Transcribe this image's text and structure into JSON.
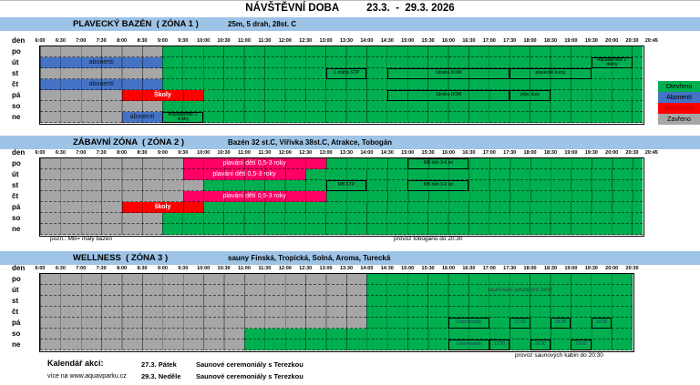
{
  "title": {
    "main": "NÁVŠTĚVNÍ DOBA",
    "range": "23.3.  -  29.3. 2026"
  },
  "day_header": "den",
  "colors": {
    "open": "#00b050",
    "abonenti": "#4472c4",
    "reserved": "#ff0000",
    "closed": "#a6a6a6",
    "pink": "#ff0066",
    "header_bar": "#9dc3e6"
  },
  "legend": [
    {
      "type": "open",
      "label": "Otevřeno"
    },
    {
      "type": "abonenti",
      "label": "Abonenti"
    },
    {
      "type": "reserved",
      "label": "Rezervace",
      "text_color": "#b00000"
    },
    {
      "type": "closed",
      "label": "Zavřeno"
    }
  ],
  "zones": [
    {
      "name": "PLAVECKÝ BAZÉN  ( ZÓNA 1 )",
      "subtitle": "25m, 5 drah, 28st. C",
      "axis_end": "20:45",
      "rows": [
        {
          "day": "po",
          "segments": [
            {
              "from": "6:00",
              "to": "9:00",
              "type": "closed"
            },
            {
              "from": "9:00",
              "to": "20:45",
              "type": "open"
            }
          ]
        },
        {
          "day": "út",
          "segments": [
            {
              "from": "6:00",
              "to": "9:00",
              "type": "abonenti",
              "label": "abonenti"
            },
            {
              "from": "9:00",
              "to": "20:45",
              "type": "open"
            }
          ],
          "boxes": [
            {
              "from": "19:30",
              "to": "20:30",
              "label": "Aquaaerobik 2 dráhy"
            }
          ]
        },
        {
          "day": "st",
          "segments": [
            {
              "from": "6:00",
              "to": "9:00",
              "type": "closed"
            },
            {
              "from": "9:00",
              "to": "20:45",
              "type": "open"
            }
          ],
          "boxes": [
            {
              "from": "13:00",
              "to": "14:00",
              "label": "1 dráha STP"
            },
            {
              "from": "14:30",
              "to": "17:30",
              "label": "1dráha DOM"
            },
            {
              "from": "17:30",
              "to": "19:30",
              "label": "plavecké kurzy"
            }
          ]
        },
        {
          "day": "čt",
          "segments": [
            {
              "from": "6:00",
              "to": "9:00",
              "type": "abonenti",
              "label": "abonenti"
            },
            {
              "from": "9:00",
              "to": "20:45",
              "type": "open"
            }
          ]
        },
        {
          "day": "pá",
          "segments": [
            {
              "from": "6:00",
              "to": "8:00",
              "type": "closed"
            },
            {
              "from": "8:00",
              "to": "10:00",
              "type": "reserved",
              "label": "Školy"
            },
            {
              "from": "10:00",
              "to": "20:45",
              "type": "open"
            }
          ],
          "boxes": [
            {
              "from": "14:30",
              "to": "17:30",
              "label": "1dráha DOM"
            },
            {
              "from": "17:30",
              "to": "18:30",
              "label": "pláv. kurz"
            }
          ]
        },
        {
          "day": "so",
          "segments": [
            {
              "from": "6:00",
              "to": "9:00",
              "type": "closed"
            },
            {
              "from": "9:00",
              "to": "20:45",
              "type": "open"
            }
          ]
        },
        {
          "day": "ne",
          "segments": [
            {
              "from": "6:00",
              "to": "8:00",
              "type": "closed"
            },
            {
              "from": "8:00",
              "to": "9:00",
              "type": "abonenti",
              "label": "abonenti"
            },
            {
              "from": "9:00",
              "to": "20:45",
              "type": "open"
            }
          ],
          "boxes": [
            {
              "from": "9:00",
              "to": "10:00",
              "label": "Aquaaerobic 2 dráhy"
            }
          ]
        }
      ]
    },
    {
      "name": "ZÁBAVNÍ ZÓNA  ( ZÓNA 2 )",
      "subtitle": "Bazén 32 st.C, Vířivka 38st.C, Atrakce, Tobogán",
      "axis_end": "20:45",
      "note_left": "pozn.: MB= malý bazén",
      "note_right": "provoz tobogánu do 20:30",
      "rows": [
        {
          "day": "po",
          "segments": [
            {
              "from": "6:00",
              "to": "9:30",
              "type": "closed"
            },
            {
              "from": "9:30",
              "to": "13:00",
              "type": "pink",
              "label": "plavání dětí 0,5-3 roky"
            },
            {
              "from": "13:00",
              "to": "20:45",
              "type": "open"
            }
          ],
          "boxes": [
            {
              "from": "15:00",
              "to": "16:30",
              "label": "MB děti 3-6 let"
            }
          ]
        },
        {
          "day": "út",
          "segments": [
            {
              "from": "6:00",
              "to": "9:30",
              "type": "closed"
            },
            {
              "from": "9:30",
              "to": "12:30",
              "type": "pink",
              "label": "plavání dětí 0,5-3 roky"
            },
            {
              "from": "12:30",
              "to": "20:45",
              "type": "open"
            }
          ]
        },
        {
          "day": "st",
          "segments": [
            {
              "from": "6:00",
              "to": "10:00",
              "type": "closed"
            },
            {
              "from": "10:00",
              "to": "20:45",
              "type": "open"
            }
          ],
          "boxes": [
            {
              "from": "13:00",
              "to": "14:00",
              "label": "MB STP"
            },
            {
              "from": "15:00",
              "to": "16:30",
              "label": "MB děti 3-6 let"
            }
          ]
        },
        {
          "day": "čt",
          "segments": [
            {
              "from": "6:00",
              "to": "9:30",
              "type": "closed"
            },
            {
              "from": "9:30",
              "to": "13:00",
              "type": "pink",
              "label": "plavání dětí 0,5-3 roky"
            },
            {
              "from": "13:00",
              "to": "20:45",
              "type": "open"
            }
          ]
        },
        {
          "day": "pá",
          "segments": [
            {
              "from": "6:00",
              "to": "8:00",
              "type": "closed"
            },
            {
              "from": "8:00",
              "to": "10:00",
              "type": "reserved",
              "label": "školy"
            },
            {
              "from": "10:00",
              "to": "20:45",
              "type": "open"
            }
          ]
        },
        {
          "day": "so",
          "segments": [
            {
              "from": "6:00",
              "to": "9:00",
              "type": "closed"
            },
            {
              "from": "9:00",
              "to": "20:45",
              "type": "open"
            }
          ]
        },
        {
          "day": "ne",
          "segments": [
            {
              "from": "6:00",
              "to": "9:00",
              "type": "closed"
            },
            {
              "from": "9:00",
              "to": "20:45",
              "type": "open"
            }
          ]
        }
      ]
    },
    {
      "name": "WELLNESS  ( ZÓNA 3 )",
      "subtitle": "sauny Finská, Tropická, Solná, Aroma, Turecká",
      "axis_end": "20:30",
      "note_right": "provoz saunových kabin do 20:30",
      "rows": [
        {
          "day": "po",
          "segments": [
            {
              "from": "6:00",
              "to": "14:00",
              "type": "closed"
            },
            {
              "from": "14:00",
              "to": "20:30",
              "type": "open"
            }
          ]
        },
        {
          "day": "út",
          "segments": [
            {
              "from": "6:00",
              "to": "14:00",
              "type": "closed"
            },
            {
              "from": "14:00",
              "to": "20:30",
              "type": "open"
            }
          ],
          "boxes": [
            {
              "from": "15:30",
              "to": "20:00",
              "label": "saunování pouze pro ženy",
              "no_border": true
            }
          ]
        },
        {
          "day": "st",
          "segments": [
            {
              "from": "6:00",
              "to": "14:00",
              "type": "closed"
            },
            {
              "from": "14:00",
              "to": "20:30",
              "type": "open"
            }
          ]
        },
        {
          "day": "čt",
          "segments": [
            {
              "from": "6:00",
              "to": "14:00",
              "type": "closed"
            },
            {
              "from": "14:00",
              "to": "20:30",
              "type": "open"
            }
          ]
        },
        {
          "day": "pá",
          "segments": [
            {
              "from": "6:00",
              "to": "14:00",
              "type": "closed"
            },
            {
              "from": "14:00",
              "to": "20:30",
              "type": "open"
            }
          ],
          "boxes": [
            {
              "from": "16:00",
              "to": "17:00",
              "label": "Ceremoniály",
              "text_color": "#1f3864"
            },
            {
              "from": "17:30",
              "to": "18:00",
              "label": "17:30",
              "text_color": "#1f3864"
            },
            {
              "from": "18:30",
              "to": "19:00",
              "label": "18:30",
              "text_color": "#1f3864"
            },
            {
              "from": "19:30",
              "to": "20:00",
              "label": "19:30",
              "text_color": "#1f3864"
            }
          ]
        },
        {
          "day": "so",
          "segments": [
            {
              "from": "6:00",
              "to": "11:00",
              "type": "closed"
            },
            {
              "from": "11:00",
              "to": "20:30",
              "type": "open"
            }
          ]
        },
        {
          "day": "ne",
          "segments": [
            {
              "from": "6:00",
              "to": "11:00",
              "type": "closed"
            },
            {
              "from": "11:00",
              "to": "20:30",
              "type": "open"
            }
          ],
          "boxes": [
            {
              "from": "16:00",
              "to": "17:00",
              "label": "Ceremoniály",
              "text_color": "#1f3864"
            },
            {
              "from": "17:00",
              "to": "17:30",
              "label": "17:00",
              "text_color": "#1f3864"
            },
            {
              "from": "18:00",
              "to": "18:30",
              "label": "18:00",
              "text_color": "#1f3864"
            },
            {
              "from": "19:00",
              "to": "19:30",
              "label": "19:00",
              "text_color": "#1f3864"
            }
          ]
        }
      ]
    }
  ],
  "calendar": {
    "heading": "Kalendář akcí:",
    "more": "více na www.aquavparku.cz",
    "events": [
      {
        "date": "27.3. Pátek",
        "text": "Saunové ceremoniály s Terezkou"
      },
      {
        "date": "29.3. Neděle",
        "text": "Saunové ceremoniály s Terezkou"
      }
    ]
  }
}
